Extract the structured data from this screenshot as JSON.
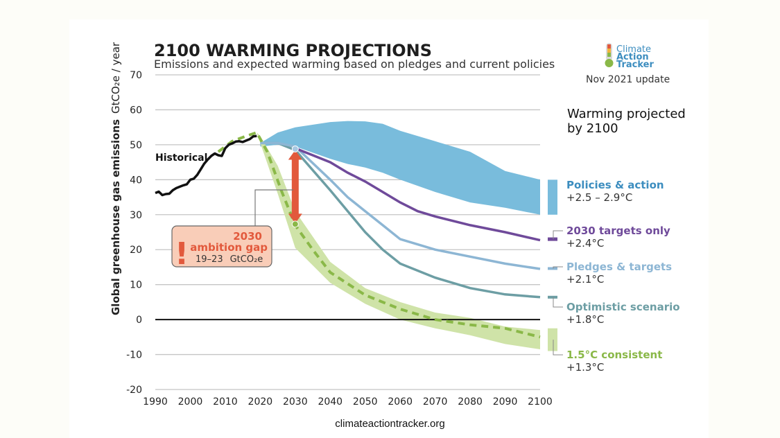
{
  "source": "climateactiontracker.org",
  "logo": {
    "line1": "Climate",
    "line2": "Action",
    "line3": "Tracker",
    "update": "Nov 2021 update",
    "icon": "thermometer-icon"
  },
  "colors": {
    "policies": "#79bcdc",
    "policies_text": "#3c8dbf",
    "targets_2030": "#6f4a9a",
    "pledges": "#8db6d4",
    "optimistic": "#6d9ea4",
    "consistent": "#8ab848",
    "consistent_band": "#cfe3a8",
    "gap": "#e2593c",
    "historical": "#111111"
  },
  "chart_data": {
    "type": "area",
    "title": "2100 WARMING PROJECTIONS",
    "subtitle": "Emissions and expected warming based on pledges and current policies",
    "ylabel": "Global greenhouse gas emissions",
    "ylabel_unit": "GtCO₂e / year",
    "xlim": [
      1990,
      2100
    ],
    "ylim": [
      -20,
      70
    ],
    "xticks": [
      1990,
      2000,
      2010,
      2020,
      2030,
      2040,
      2050,
      2060,
      2070,
      2080,
      2090,
      2100
    ],
    "yticks": [
      70,
      60,
      50,
      40,
      30,
      20,
      10,
      0,
      -10,
      -20
    ],
    "projection_heading": [
      "Warming projected",
      "by 2100"
    ],
    "historical": {
      "name": "Historical",
      "x": [
        1990,
        1991,
        1992,
        1993,
        1994,
        1995,
        1996,
        1997,
        1998,
        1999,
        2000,
        2001,
        2002,
        2003,
        2004,
        2005,
        2006,
        2007,
        2008,
        2009,
        2010,
        2011,
        2012,
        2013,
        2014,
        2015,
        2016,
        2017,
        2018,
        2019
      ],
      "y": [
        36.2,
        36.6,
        35.6,
        35.9,
        36.0,
        37.0,
        37.6,
        38.0,
        38.4,
        38.7,
        40.0,
        40.3,
        41.4,
        43.0,
        44.6,
        45.8,
        46.8,
        47.5,
        47.0,
        46.8,
        49.0,
        50.0,
        50.4,
        50.9,
        51.0,
        50.8,
        51.2,
        51.6,
        52.4,
        52.5
      ]
    },
    "policies_band": {
      "name": "Policies & action",
      "range": "+2.5 – 2.9°C",
      "x": [
        2020,
        2025,
        2030,
        2040,
        2045,
        2050,
        2055,
        2060,
        2070,
        2080,
        2090,
        2100
      ],
      "upper": [
        50.5,
        53.5,
        55.0,
        56.5,
        56.8,
        56.7,
        56.0,
        54.0,
        51.0,
        48.0,
        42.5,
        40.0
      ],
      "lower": [
        49.5,
        50.0,
        49.5,
        46.0,
        44.5,
        43.5,
        42.0,
        40.0,
        36.5,
        33.5,
        32.0,
        30.0
      ]
    },
    "targets_2030": {
      "name": "2030 targets only",
      "range": "+2.4°C",
      "x": [
        2030,
        2040,
        2045,
        2050,
        2055,
        2060,
        2065,
        2070,
        2080,
        2090,
        2100
      ],
      "y": [
        49,
        45,
        42,
        39.5,
        36.5,
        33.5,
        31,
        29.5,
        27,
        25,
        22.7
      ]
    },
    "pledges_targets": {
      "name": "Pledges & targets",
      "range": "+2.1°C",
      "x": [
        2020,
        2025,
        2030,
        2040,
        2045,
        2050,
        2055,
        2060,
        2070,
        2080,
        2090,
        2100
      ],
      "y": [
        50.5,
        50.5,
        49.5,
        40,
        35,
        31,
        27,
        23,
        20,
        18,
        16,
        14.5
      ]
    },
    "optimistic": {
      "name": "Optimistic scenario",
      "range": "+1.8°C",
      "x": [
        2020,
        2025,
        2030,
        2040,
        2045,
        2050,
        2055,
        2060,
        2070,
        2080,
        2090,
        2100
      ],
      "y": [
        50.5,
        50.5,
        48.5,
        37,
        31,
        25,
        20,
        16,
        12,
        9,
        7.2,
        6.4
      ]
    },
    "consistent_band": {
      "name": "1.5°C consistent",
      "range": "+1.3°C",
      "x": [
        2019,
        2020,
        2025,
        2030,
        2040,
        2050,
        2060,
        2070,
        2080,
        2090,
        2100
      ],
      "upper": [
        53.5,
        52.5,
        44,
        31,
        16.5,
        9,
        5,
        2,
        0.5,
        -2,
        -3
      ],
      "lower": [
        53.5,
        50.5,
        36,
        20.5,
        10.5,
        4.5,
        0,
        -2.5,
        -4.5,
        -7,
        -8.5
      ]
    },
    "consistent_median": {
      "x": [
        2008,
        2012,
        2016,
        2019,
        2022,
        2026,
        2030,
        2035,
        2040,
        2050,
        2060,
        2070,
        2080,
        2090,
        2100
      ],
      "y": [
        48,
        51,
        52.5,
        53.5,
        48,
        37,
        27,
        20,
        13.5,
        7,
        3,
        0,
        -1.5,
        -2.5,
        -5
      ]
    },
    "ambition_gap": {
      "year_label": "2030",
      "label": "ambition gap",
      "range": "19–23",
      "unit": "GtCO₂e",
      "x": 2030,
      "y_top": 48.5,
      "y_bottom": 27.5
    },
    "right_bars": {
      "policies": [
        40,
        30
      ],
      "targets_2030": [
        23.5,
        22.5
      ],
      "pledges": [
        15,
        14.3
      ],
      "optimistic": [
        6.8,
        6
      ],
      "consistent": [
        -2.5,
        -9
      ]
    }
  }
}
